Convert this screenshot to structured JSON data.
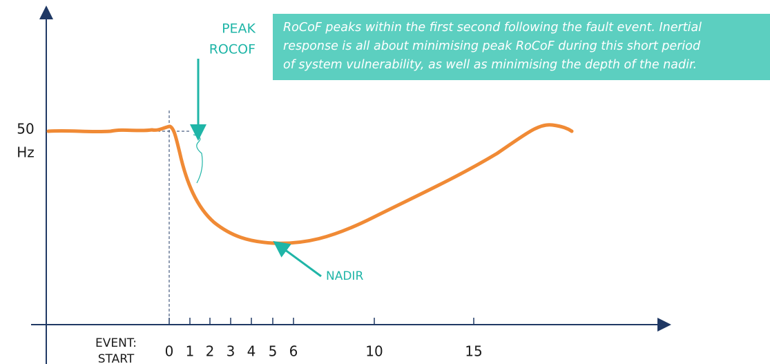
{
  "callout": {
    "lines": [
      "RoCoF peaks within the first second following the fault event. Inertial",
      "response is all about minimising peak RoCoF during this short period",
      "of system vulnerability, as well as minimising the depth of the nadir."
    ]
  },
  "peak_label": [
    "PEAK",
    "ROCOF"
  ],
  "nadir_label": "NADIR",
  "y_axis": {
    "value": "50",
    "unit": "Hz"
  },
  "event_label": [
    "EVENT:",
    "START"
  ],
  "x_ticks": [
    "0",
    "1",
    "2",
    "3",
    "4",
    "5",
    "6",
    "10",
    "15"
  ]
}
